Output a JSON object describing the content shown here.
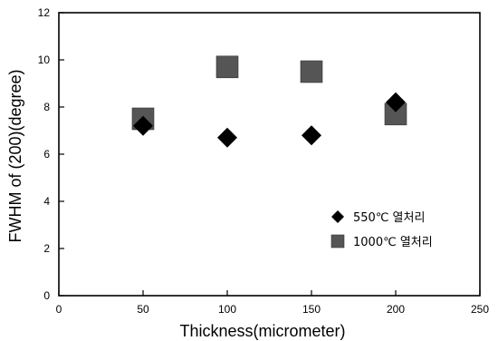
{
  "chart_data": {
    "type": "scatter",
    "xlabel": "Thickness(micrometer)",
    "ylabel": "FWHM of (200)(degree)",
    "xlim": [
      0,
      250
    ],
    "ylim": [
      0,
      12
    ],
    "x_ticks": [
      0,
      50,
      100,
      150,
      200,
      250
    ],
    "y_ticks": [
      0,
      2,
      4,
      6,
      8,
      10,
      12
    ],
    "grid": false,
    "legend_position": "right-middle",
    "series": [
      {
        "name": "550℃ 열처리",
        "marker": "diamond",
        "color": "#000000",
        "points": [
          {
            "x": 50,
            "y": 7.2
          },
          {
            "x": 100,
            "y": 6.7
          },
          {
            "x": 150,
            "y": 6.8
          },
          {
            "x": 200,
            "y": 8.2
          }
        ]
      },
      {
        "name": "1000℃ 열처리",
        "marker": "square",
        "color": "#555555",
        "points": [
          {
            "x": 50,
            "y": 7.5
          },
          {
            "x": 100,
            "y": 9.7
          },
          {
            "x": 150,
            "y": 9.5
          },
          {
            "x": 200,
            "y": 7.7
          }
        ]
      }
    ]
  }
}
